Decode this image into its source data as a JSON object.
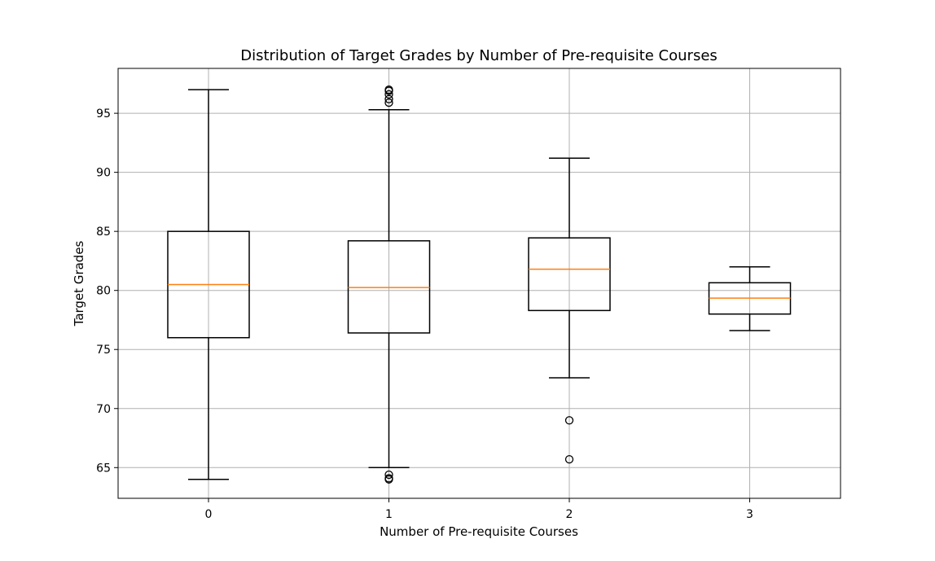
{
  "chart_data": {
    "type": "box",
    "title": "Distribution of Target Grades by Number of Pre-requisite Courses",
    "xlabel": "Number of Pre-requisite Courses",
    "ylabel": "Target Grades",
    "categories": [
      "0",
      "1",
      "2",
      "3"
    ],
    "yticks": [
      65,
      70,
      75,
      80,
      85,
      90,
      95
    ],
    "ylim": [
      62.4,
      98.8
    ],
    "grid": true,
    "colors": {
      "box": "#000000",
      "median": "#ff7f0e",
      "grid": "#b0b0b0"
    },
    "boxes": [
      {
        "category": "0",
        "whisker_low": 64.0,
        "q1": 76.0,
        "median": 80.5,
        "q3": 85.0,
        "whisker_high": 97.0,
        "outliers": []
      },
      {
        "category": "1",
        "whisker_low": 65.0,
        "q1": 76.4,
        "median": 80.25,
        "q3": 84.2,
        "whisker_high": 95.3,
        "outliers": [
          64.0,
          64.1,
          64.4,
          95.9,
          96.2,
          96.6,
          96.9,
          97.0
        ]
      },
      {
        "category": "2",
        "whisker_low": 72.6,
        "q1": 78.3,
        "median": 81.8,
        "q3": 84.45,
        "whisker_high": 91.2,
        "outliers": [
          69.0,
          65.7
        ]
      },
      {
        "category": "3",
        "whisker_low": 76.6,
        "q1": 78.0,
        "median": 79.35,
        "q3": 80.65,
        "whisker_high": 82.0,
        "outliers": []
      }
    ]
  }
}
